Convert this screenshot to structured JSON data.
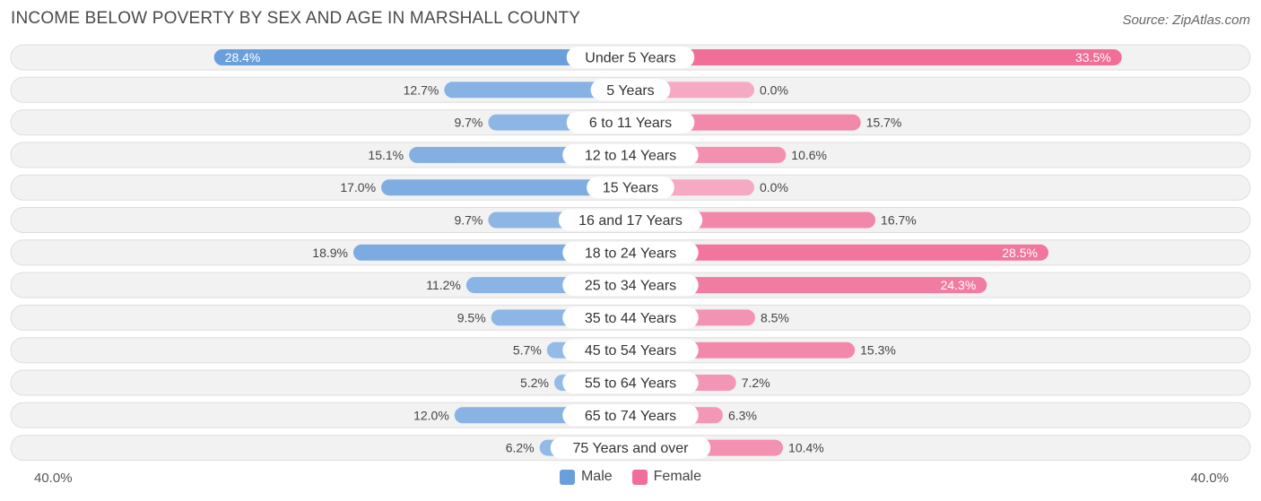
{
  "title": "INCOME BELOW POVERTY BY SEX AND AGE IN MARSHALL COUNTY",
  "source": "Source: ZipAtlas.com",
  "colors": {
    "male_strong": "#6a9fdc",
    "male_light": "#a8c8ec",
    "female_strong": "#f06e98",
    "female_light": "#f5a9c2",
    "row_bg": "#f2f2f2",
    "row_border": "#dedede"
  },
  "legend": {
    "male": "Male",
    "female": "Female"
  },
  "axis": {
    "left_label": "40.0%",
    "right_label": "40.0%"
  },
  "chart_data": {
    "type": "bar",
    "orientation": "horizontal-diverging",
    "title": "INCOME BELOW POVERTY BY SEX AND AGE IN MARSHALL COUNTY",
    "xlim": [
      0,
      40
    ],
    "categories": [
      "Under 5 Years",
      "5 Years",
      "6 to 11 Years",
      "12 to 14 Years",
      "15 Years",
      "16 and 17 Years",
      "18 to 24 Years",
      "25 to 34 Years",
      "35 to 44 Years",
      "45 to 54 Years",
      "55 to 64 Years",
      "65 to 74 Years",
      "75 Years and over"
    ],
    "series": [
      {
        "name": "Male",
        "values": [
          28.4,
          12.7,
          9.7,
          15.1,
          17.0,
          9.7,
          18.9,
          11.2,
          9.5,
          5.7,
          5.2,
          12.0,
          6.2
        ],
        "labels": [
          "28.4%",
          "12.7%",
          "9.7%",
          "15.1%",
          "17.0%",
          "9.7%",
          "18.9%",
          "11.2%",
          "9.5%",
          "5.7%",
          "5.2%",
          "12.0%",
          "6.2%"
        ]
      },
      {
        "name": "Female",
        "values": [
          33.5,
          0.0,
          15.7,
          10.6,
          0.0,
          16.7,
          28.5,
          24.3,
          8.5,
          15.3,
          7.2,
          6.3,
          10.4
        ],
        "labels": [
          "33.5%",
          "0.0%",
          "15.7%",
          "10.6%",
          "0.0%",
          "16.7%",
          "28.5%",
          "24.3%",
          "8.5%",
          "15.3%",
          "7.2%",
          "6.3%",
          "10.4%"
        ]
      }
    ]
  }
}
